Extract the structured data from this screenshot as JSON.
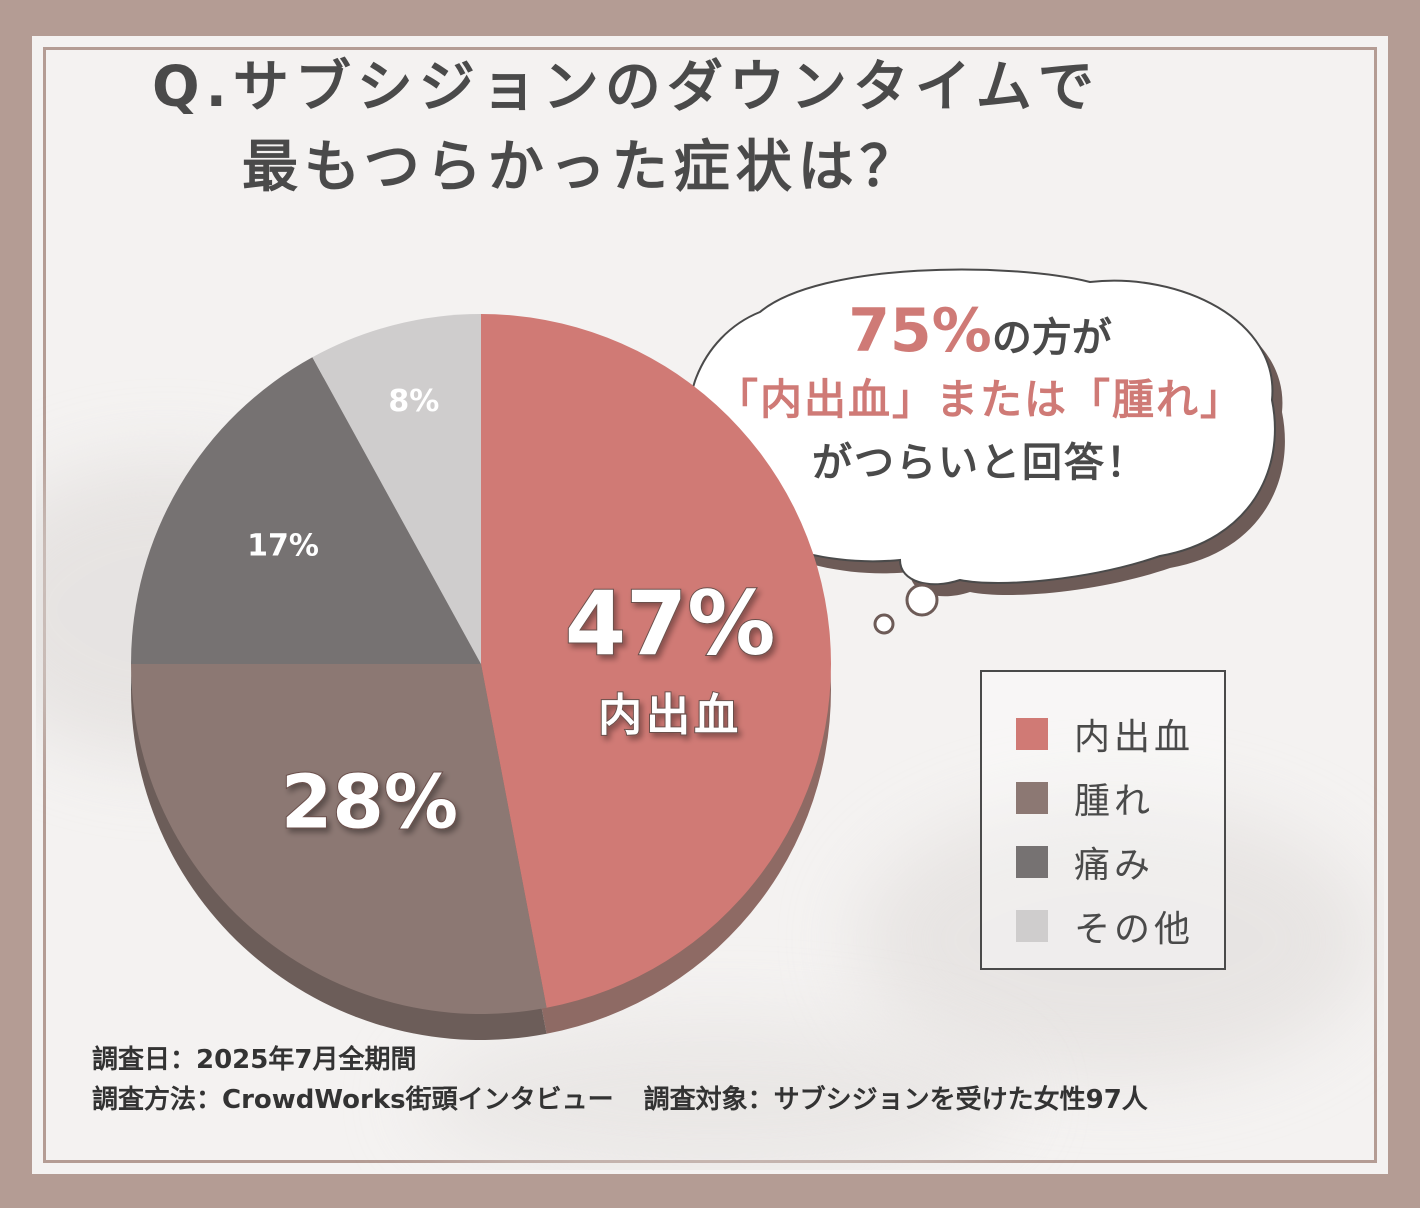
{
  "title": {
    "line1": "Q.サブシジョンのダウンタイムで",
    "line2": "最もつらかった症状は？"
  },
  "callout": {
    "percent": "75%",
    "line1_rest": "の方が",
    "line2": "「内出血」または「腫れ」",
    "line3": "がつらいと回答！"
  },
  "chart_data": {
    "type": "pie",
    "categories": [
      "内出血",
      "腫れ",
      "痛み",
      "その他"
    ],
    "values": [
      47,
      28,
      17,
      8
    ],
    "labels": [
      "47%",
      "28%",
      "17%",
      "8%"
    ],
    "main_slice_label": "内出血",
    "colors": [
      "#d07a75",
      "#8c7873",
      "#767272",
      "#cfcdcd"
    ],
    "legend_placement": "right"
  },
  "legend": {
    "items": [
      {
        "label": "内出血",
        "color": "#d07a75"
      },
      {
        "label": "腫れ",
        "color": "#8c7873"
      },
      {
        "label": "痛み",
        "color": "#767272"
      },
      {
        "label": "その他",
        "color": "#cfcdcd"
      }
    ]
  },
  "footer": {
    "date": "調査日：2025年7月全期間",
    "method": "調査方法：CrowdWorks街頭インタビュー",
    "target": "調査対象：サブシジョンを受けた女性97人"
  },
  "colors": {
    "frame": "#b49c94",
    "text": "#4a4a4a",
    "accent": "#cf7a76"
  }
}
